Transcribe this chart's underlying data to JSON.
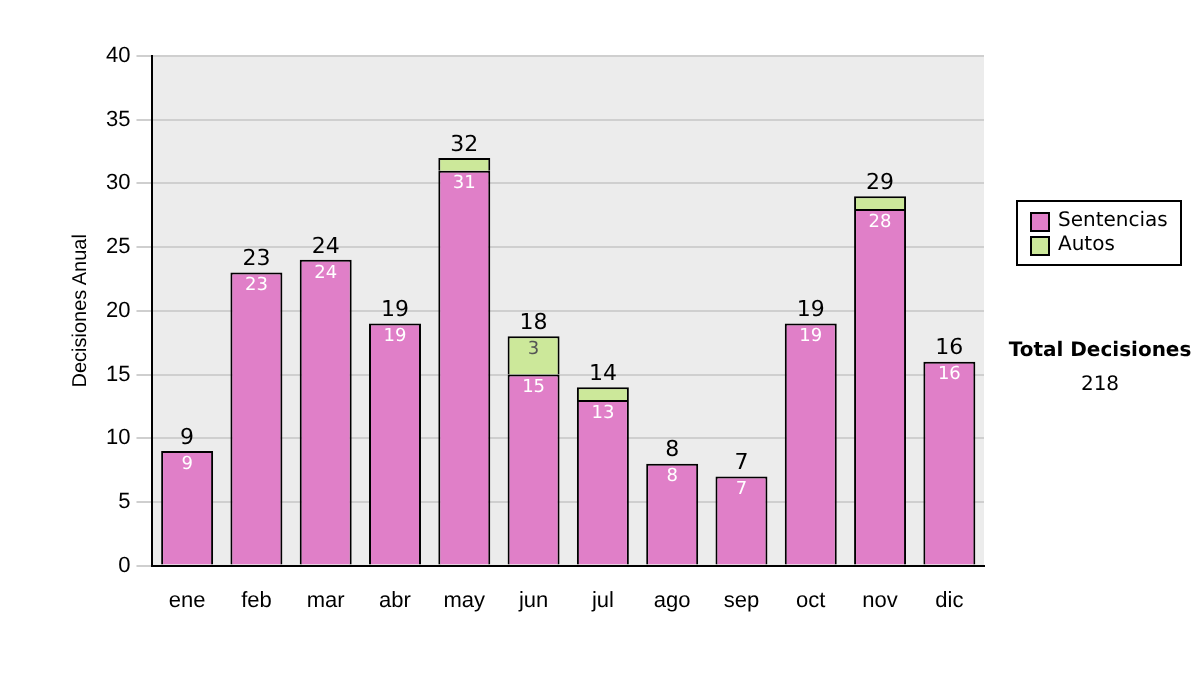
{
  "chart_data": {
    "type": "bar",
    "stacked": true,
    "categories": [
      "ene",
      "feb",
      "mar",
      "abr",
      "may",
      "jun",
      "jul",
      "ago",
      "sep",
      "oct",
      "nov",
      "dic"
    ],
    "series": [
      {
        "name": "Sentencias",
        "color": "#e07fc8",
        "values": [
          9,
          23,
          24,
          19,
          31,
          15,
          13,
          8,
          7,
          19,
          28,
          16
        ],
        "value_labels": [
          "9",
          "23",
          "24",
          "19",
          "31",
          "15",
          "13",
          "8",
          "7",
          "19",
          "28",
          "16"
        ]
      },
      {
        "name": "Autos",
        "color": "#cce89a",
        "values": [
          0,
          0,
          0,
          0,
          1,
          3,
          1,
          0,
          0,
          0,
          1,
          0
        ],
        "value_labels": [
          null,
          null,
          null,
          null,
          null,
          "3",
          null,
          null,
          null,
          null,
          null,
          null
        ]
      }
    ],
    "totals": [
      "9",
      "23",
      "24",
      "19",
      "32",
      "18",
      "14",
      "8",
      "7",
      "19",
      "29",
      "16"
    ],
    "ylabel": "Decisiones Anual",
    "ylim": [
      0,
      40
    ],
    "yticks": [
      0,
      5,
      10,
      15,
      20,
      25,
      30,
      35,
      40
    ],
    "grid": "y",
    "legend": "right",
    "annotations": [
      "Total Decisiones",
      "218"
    ]
  }
}
